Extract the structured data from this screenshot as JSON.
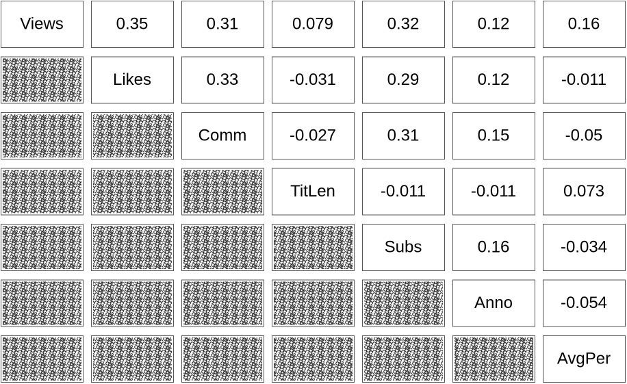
{
  "chart_data": {
    "type": "pairs",
    "variables": [
      "Views",
      "Likes",
      "Comm",
      "TitLen",
      "Subs",
      "Anno",
      "AvgPer"
    ],
    "correlations": [
      [
        0.35,
        0.31,
        0.079,
        0.32,
        0.12,
        0.16
      ],
      [
        0.33,
        -0.031,
        0.29,
        0.12,
        -0.011
      ],
      [
        -0.027,
        0.31,
        0.15,
        -0.05
      ],
      [
        -0.011,
        -0.011,
        0.073
      ],
      [
        0.16,
        -0.034
      ],
      [
        -0.054
      ]
    ]
  }
}
